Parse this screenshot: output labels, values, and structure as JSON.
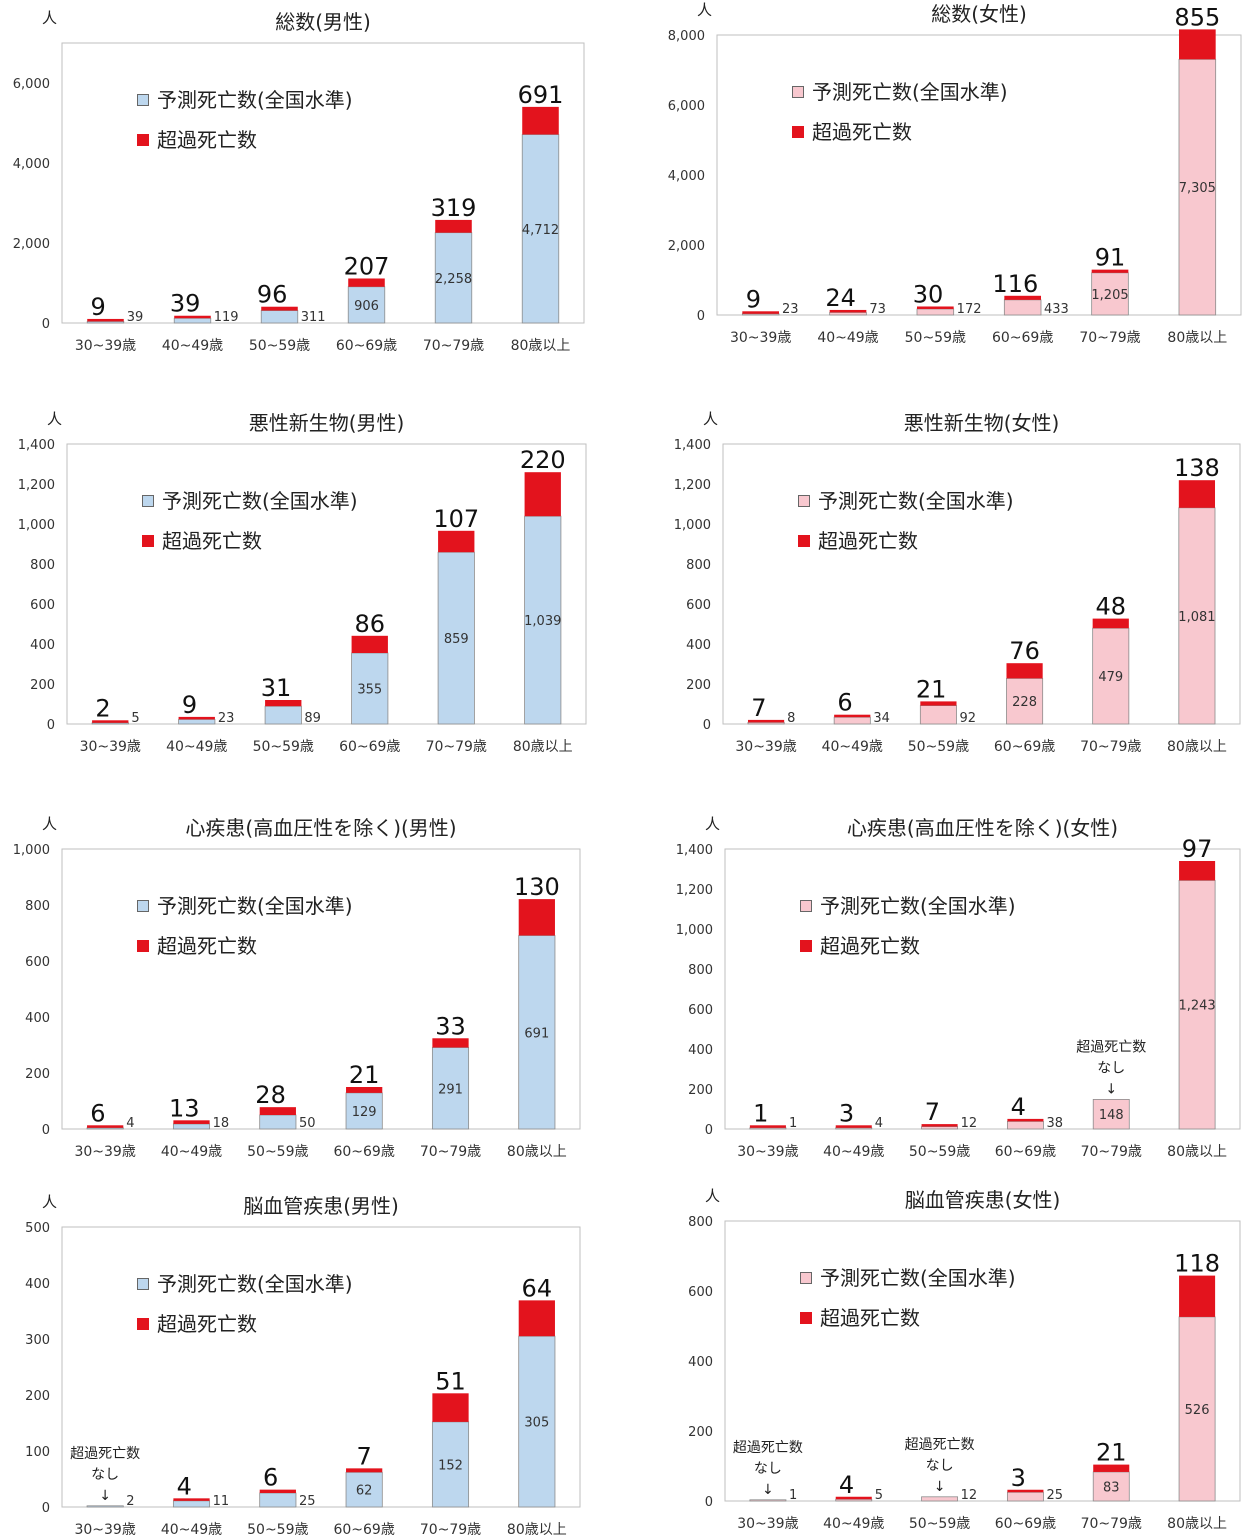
{
  "colors": {
    "male_predicted": "#bdd7ee",
    "female_predicted": "#f8c8cf",
    "excess": "#e3131d",
    "axis_text": "#333333",
    "plot_border": "#bfbfbf"
  },
  "chart_data": [
    {
      "type": "bar",
      "stacked": true,
      "title": "総数(男性)",
      "unit_label": "人",
      "categories": [
        "30~39歳",
        "40~49歳",
        "50~59歳",
        "60~69歳",
        "70~79歳",
        "80歳以上"
      ],
      "series": [
        {
          "name": "予測死亡数(全国水準)",
          "values": [
            39,
            119,
            311,
            906,
            2258,
            4712
          ]
        },
        {
          "name": "超過死亡数",
          "values": [
            9,
            39,
            96,
            207,
            319,
            691
          ]
        }
      ],
      "predicted_labels": [
        "39",
        "119",
        "311",
        "906",
        "2,258",
        "4,712"
      ],
      "excess_labels": [
        "9",
        "39",
        "96",
        "207",
        "319",
        "691"
      ],
      "ylim": [
        0,
        7000
      ],
      "yticks": [
        0,
        2000,
        4000,
        6000
      ],
      "ytick_labels": [
        "0",
        "2,000",
        "4,000",
        "6,000"
      ],
      "legend": "top-left",
      "palette": "male"
    },
    {
      "type": "bar",
      "stacked": true,
      "title": "総数(女性)",
      "unit_label": "人",
      "categories": [
        "30~39歳",
        "40~49歳",
        "50~59歳",
        "60~69歳",
        "70~79歳",
        "80歳以上"
      ],
      "series": [
        {
          "name": "予測死亡数(全国水準)",
          "values": [
            23,
            73,
            172,
            433,
            1205,
            7305
          ]
        },
        {
          "name": "超過死亡数",
          "values": [
            9,
            24,
            30,
            116,
            91,
            855
          ]
        }
      ],
      "predicted_labels": [
        "23",
        "73",
        "172",
        "433",
        "1,205",
        "7,305"
      ],
      "excess_labels": [
        "9",
        "24",
        "30",
        "116",
        "91",
        "855"
      ],
      "ylim": [
        0,
        8000
      ],
      "yticks": [
        0,
        2000,
        4000,
        6000,
        8000
      ],
      "ytick_labels": [
        "0",
        "2,000",
        "4,000",
        "6,000",
        "8,000"
      ],
      "legend": "top-left",
      "palette": "female"
    },
    {
      "type": "bar",
      "stacked": true,
      "title": "悪性新生物(男性)",
      "unit_label": "人",
      "categories": [
        "30~39歳",
        "40~49歳",
        "50~59歳",
        "60~69歳",
        "70~79歳",
        "80歳以上"
      ],
      "series": [
        {
          "name": "予測死亡数(全国水準)",
          "values": [
            5,
            23,
            89,
            355,
            859,
            1039
          ]
        },
        {
          "name": "超過死亡数",
          "values": [
            2,
            9,
            31,
            86,
            107,
            220
          ]
        }
      ],
      "predicted_labels": [
        "5",
        "23",
        "89",
        "355",
        "859",
        "1,039"
      ],
      "excess_labels": [
        "2",
        "9",
        "31",
        "86",
        "107",
        "220"
      ],
      "ylim": [
        0,
        1400
      ],
      "yticks": [
        0,
        200,
        400,
        600,
        800,
        1000,
        1200,
        1400
      ],
      "ytick_labels": [
        "0",
        "200",
        "400",
        "600",
        "800",
        "1,000",
        "1,200",
        "1,400"
      ],
      "legend": "top-left",
      "palette": "male"
    },
    {
      "type": "bar",
      "stacked": true,
      "title": "悪性新生物(女性)",
      "unit_label": "人",
      "categories": [
        "30~39歳",
        "40~49歳",
        "50~59歳",
        "60~69歳",
        "70~79歳",
        "80歳以上"
      ],
      "series": [
        {
          "name": "予測死亡数(全国水準)",
          "values": [
            8,
            34,
            92,
            228,
            479,
            1081
          ]
        },
        {
          "name": "超過死亡数",
          "values": [
            7,
            6,
            21,
            76,
            48,
            138
          ]
        }
      ],
      "predicted_labels": [
        "8",
        "34",
        "92",
        "228",
        "479",
        "1,081"
      ],
      "excess_labels": [
        "7",
        "6",
        "21",
        "76",
        "48",
        "138"
      ],
      "ylim": [
        0,
        1400
      ],
      "yticks": [
        0,
        200,
        400,
        600,
        800,
        1000,
        1200,
        1400
      ],
      "ytick_labels": [
        "0",
        "200",
        "400",
        "600",
        "800",
        "1,000",
        "1,200",
        "1,400"
      ],
      "legend": "top-left",
      "palette": "female"
    },
    {
      "type": "bar",
      "stacked": true,
      "title": "心疾患(高血圧性を除く)(男性)",
      "unit_label": "人",
      "categories": [
        "30~39歳",
        "40~49歳",
        "50~59歳",
        "60~69歳",
        "70~79歳",
        "80歳以上"
      ],
      "series": [
        {
          "name": "予測死亡数(全国水準)",
          "values": [
            4,
            18,
            50,
            129,
            291,
            691
          ]
        },
        {
          "name": "超過死亡数",
          "values": [
            6,
            13,
            28,
            21,
            33,
            130
          ]
        }
      ],
      "predicted_labels": [
        "4",
        "18",
        "50",
        "129",
        "291",
        "691"
      ],
      "excess_labels": [
        "6",
        "13",
        "28",
        "21",
        "33",
        "130"
      ],
      "ylim": [
        0,
        1000
      ],
      "yticks": [
        0,
        200,
        400,
        600,
        800,
        1000
      ],
      "ytick_labels": [
        "0",
        "200",
        "400",
        "600",
        "800",
        "1,000"
      ],
      "legend": "top-left",
      "palette": "male"
    },
    {
      "type": "bar",
      "stacked": true,
      "title": "心疾患(高血圧性を除く)(女性)",
      "unit_label": "人",
      "categories": [
        "30~39歳",
        "40~49歳",
        "50~59歳",
        "60~69歳",
        "70~79歳",
        "80歳以上"
      ],
      "series": [
        {
          "name": "予測死亡数(全国水準)",
          "values": [
            1,
            4,
            12,
            38,
            148,
            1243
          ]
        },
        {
          "name": "超過死亡数",
          "values": [
            1,
            3,
            7,
            4,
            0,
            97
          ]
        }
      ],
      "predicted_labels": [
        "1",
        "4",
        "12",
        "38",
        "148",
        "1,243"
      ],
      "excess_labels": [
        "1",
        "3",
        "7",
        "4",
        "",
        "97"
      ],
      "annotations": [
        {
          "category_index": 4,
          "lines": [
            "超過死亡数",
            "なし",
            "↓"
          ]
        }
      ],
      "ylim": [
        0,
        1400
      ],
      "yticks": [
        0,
        200,
        400,
        600,
        800,
        1000,
        1200,
        1400
      ],
      "ytick_labels": [
        "0",
        "200",
        "400",
        "600",
        "800",
        "1,000",
        "1,200",
        "1,400"
      ],
      "legend": "top-left",
      "palette": "female"
    },
    {
      "type": "bar",
      "stacked": true,
      "title": "脳血管疾患(男性)",
      "unit_label": "人",
      "categories": [
        "30~39歳",
        "40~49歳",
        "50~59歳",
        "60~69歳",
        "70~79歳",
        "80歳以上"
      ],
      "series": [
        {
          "name": "予測死亡数(全国水準)",
          "values": [
            2,
            11,
            25,
            62,
            152,
            305
          ]
        },
        {
          "name": "超過死亡数",
          "values": [
            0,
            4,
            6,
            7,
            51,
            64
          ]
        }
      ],
      "predicted_labels": [
        "2",
        "11",
        "25",
        "62",
        "152",
        "305"
      ],
      "excess_labels": [
        "",
        "4",
        "6",
        "7",
        "51",
        "64"
      ],
      "annotations": [
        {
          "category_index": 0,
          "lines": [
            "超過死亡数",
            "なし",
            "↓"
          ]
        }
      ],
      "ylim": [
        0,
        500
      ],
      "yticks": [
        0,
        100,
        200,
        300,
        400,
        500
      ],
      "ytick_labels": [
        "0",
        "100",
        "200",
        "300",
        "400",
        "500"
      ],
      "legend": "top-left",
      "palette": "male"
    },
    {
      "type": "bar",
      "stacked": true,
      "title": "脳血管疾患(女性)",
      "unit_label": "人",
      "categories": [
        "30~39歳",
        "40~49歳",
        "50~59歳",
        "60~69歳",
        "70~79歳",
        "80歳以上"
      ],
      "series": [
        {
          "name": "予測死亡数(全国水準)",
          "values": [
            1,
            5,
            12,
            25,
            83,
            526
          ]
        },
        {
          "name": "超過死亡数",
          "values": [
            0,
            4,
            0,
            3,
            21,
            118
          ]
        }
      ],
      "predicted_labels": [
        "1",
        "5",
        "12",
        "25",
        "83",
        "526"
      ],
      "excess_labels": [
        "",
        "4",
        "",
        "3",
        "21",
        "118"
      ],
      "annotations": [
        {
          "category_index": 0,
          "lines": [
            "超過死亡数",
            "なし",
            "↓"
          ]
        },
        {
          "category_index": 2,
          "lines": [
            "超過死亡数",
            "なし",
            "↓"
          ]
        }
      ],
      "ylim": [
        0,
        800
      ],
      "yticks": [
        0,
        200,
        400,
        600,
        800
      ],
      "ytick_labels": [
        "0",
        "200",
        "400",
        "600",
        "800"
      ],
      "legend": "top-left",
      "palette": "female"
    }
  ]
}
